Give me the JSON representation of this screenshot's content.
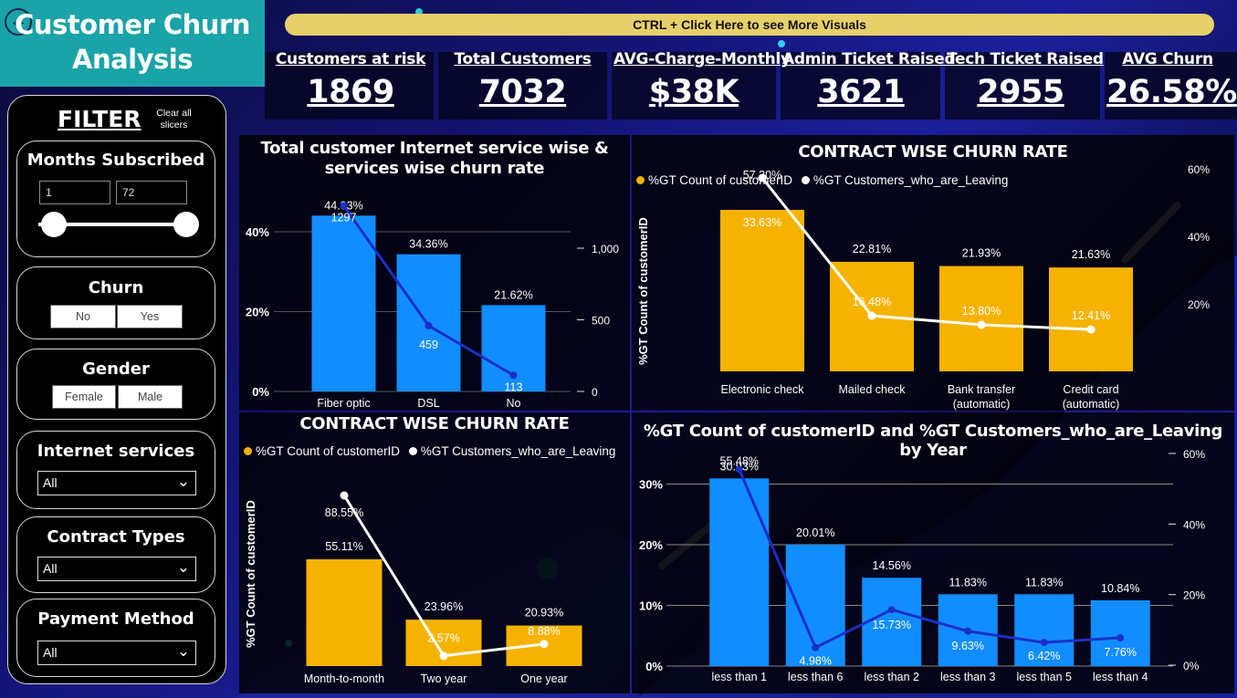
{
  "header": {
    "title": "Customer Churn Analysis",
    "back_icon": "back-arrow-icon"
  },
  "cta": {
    "label": "CTRL + Click Here to see More Visuals"
  },
  "kpis": [
    {
      "label": "Customers at risk",
      "value": "1869"
    },
    {
      "label": "Total Customers",
      "value": "7032"
    },
    {
      "label": "AVG-Charge-Monthly",
      "value": "$38K"
    },
    {
      "label": "Admin Ticket Raised",
      "value": "3621"
    },
    {
      "label": "Tech Ticket Raised",
      "value": "2955"
    },
    {
      "label": "AVG Churn",
      "value": "26.58%"
    }
  ],
  "filter": {
    "title": "FILTER",
    "clear_label": "Clear all slicers",
    "months": {
      "title": "Months Subscribed",
      "min": "1",
      "max": "72"
    },
    "churn": {
      "title": "Churn",
      "options": [
        "No",
        "Yes"
      ]
    },
    "gender": {
      "title": "Gender",
      "options": [
        "Female",
        "Male"
      ]
    },
    "internet": {
      "title": "Internet services",
      "value": "All"
    },
    "contract": {
      "title": "Contract Types",
      "value": "All"
    },
    "payment": {
      "title": "Payment Method",
      "value": "All"
    }
  },
  "colors": {
    "blue_bar": "#118dff",
    "orange_bar": "#f5b300",
    "blue_line": "#1b2fc8",
    "white_line": "#ffffff",
    "header_teal": "#1aa3a8",
    "cta_yellow": "#e7cf6a"
  },
  "chart_data": [
    {
      "id": "internet",
      "type": "bar",
      "title": "Total customer Internet service wise & services wise churn rate",
      "categories": [
        "Fiber optic",
        "DSL",
        "No"
      ],
      "series": [
        {
          "values": [
            44.03,
            34.36,
            21.62
          ],
          "labels": [
            "44.03%",
            "34.36%",
            "21.62%"
          ]
        },
        {
          "values": [
            1297,
            459,
            113
          ],
          "labels": [
            "1297",
            "459",
            "113"
          ]
        }
      ],
      "y_ticks": [
        "0%",
        "20%",
        "40%"
      ],
      "y2_ticks": [
        "0",
        "500",
        "1,000"
      ]
    },
    {
      "id": "payment",
      "type": "bar",
      "title": "CONTRACT WISE CHURN RATE",
      "legend": [
        "%GT Count of customerID",
        "%GT Customers_who_are_Leaving"
      ],
      "ylabel": "%GT Count of customerID",
      "categories": [
        "Electronic check",
        "Mailed check",
        "Bank transfer (automatic)",
        "Credit card (automatic)"
      ],
      "series": [
        {
          "name": "%GT Count of customerID",
          "values": [
            33.63,
            22.81,
            21.93,
            21.63
          ],
          "labels": [
            "33.63%",
            "22.81%",
            "21.93%",
            "21.63%"
          ]
        },
        {
          "name": "%GT Customers_who_are_Leaving",
          "values": [
            57.3,
            16.48,
            13.8,
            12.41
          ],
          "labels": [
            "57.30%",
            "16.48%",
            "13.80%",
            "12.41%"
          ]
        }
      ],
      "y2_ticks": [
        "20%",
        "40%",
        "60%"
      ]
    },
    {
      "id": "contract",
      "type": "bar",
      "title": "CONTRACT WISE CHURN RATE",
      "legend": [
        "%GT Count of customerID",
        "%GT Customers_who_are_Leaving"
      ],
      "ylabel": "%GT Count of customerID",
      "categories": [
        "Month-to-month",
        "Two year",
        "One year"
      ],
      "series": [
        {
          "name": "%GT Count of customerID",
          "values": [
            55.11,
            23.96,
            20.93
          ],
          "labels": [
            "55.11%",
            "23.96%",
            "20.93%"
          ]
        },
        {
          "name": "%GT Customers_who_are_Leaving",
          "values": [
            88.55,
            2.57,
            8.88
          ],
          "labels": [
            "88.55%",
            "2.57%",
            "8.88%"
          ]
        }
      ]
    },
    {
      "id": "year",
      "type": "bar",
      "title": "%GT Count of customerID and %GT Customers_who_are_Leaving by Year",
      "categories": [
        "less than 1",
        "less than 6",
        "less than 2",
        "less than 3",
        "less than 5",
        "less than 4"
      ],
      "series": [
        {
          "name": "%GT Count of customerID",
          "values": [
            30.93,
            20.01,
            14.56,
            11.83,
            11.83,
            10.84
          ],
          "labels": [
            "30.93%",
            "20.01%",
            "14.56%",
            "11.83%",
            "11.83%",
            "10.84%"
          ]
        },
        {
          "name": "%GT Customers_who_are_Leaving",
          "values": [
            55.48,
            4.98,
            15.73,
            9.63,
            6.42,
            7.76
          ],
          "labels": [
            "55.48%",
            "4.98%",
            "15.73%",
            "9.63%",
            "6.42%",
            "7.76%"
          ]
        }
      ],
      "y_ticks": [
        "0%",
        "10%",
        "20%",
        "30%"
      ],
      "y2_ticks": [
        "0%",
        "20%",
        "40%",
        "60%"
      ]
    }
  ]
}
